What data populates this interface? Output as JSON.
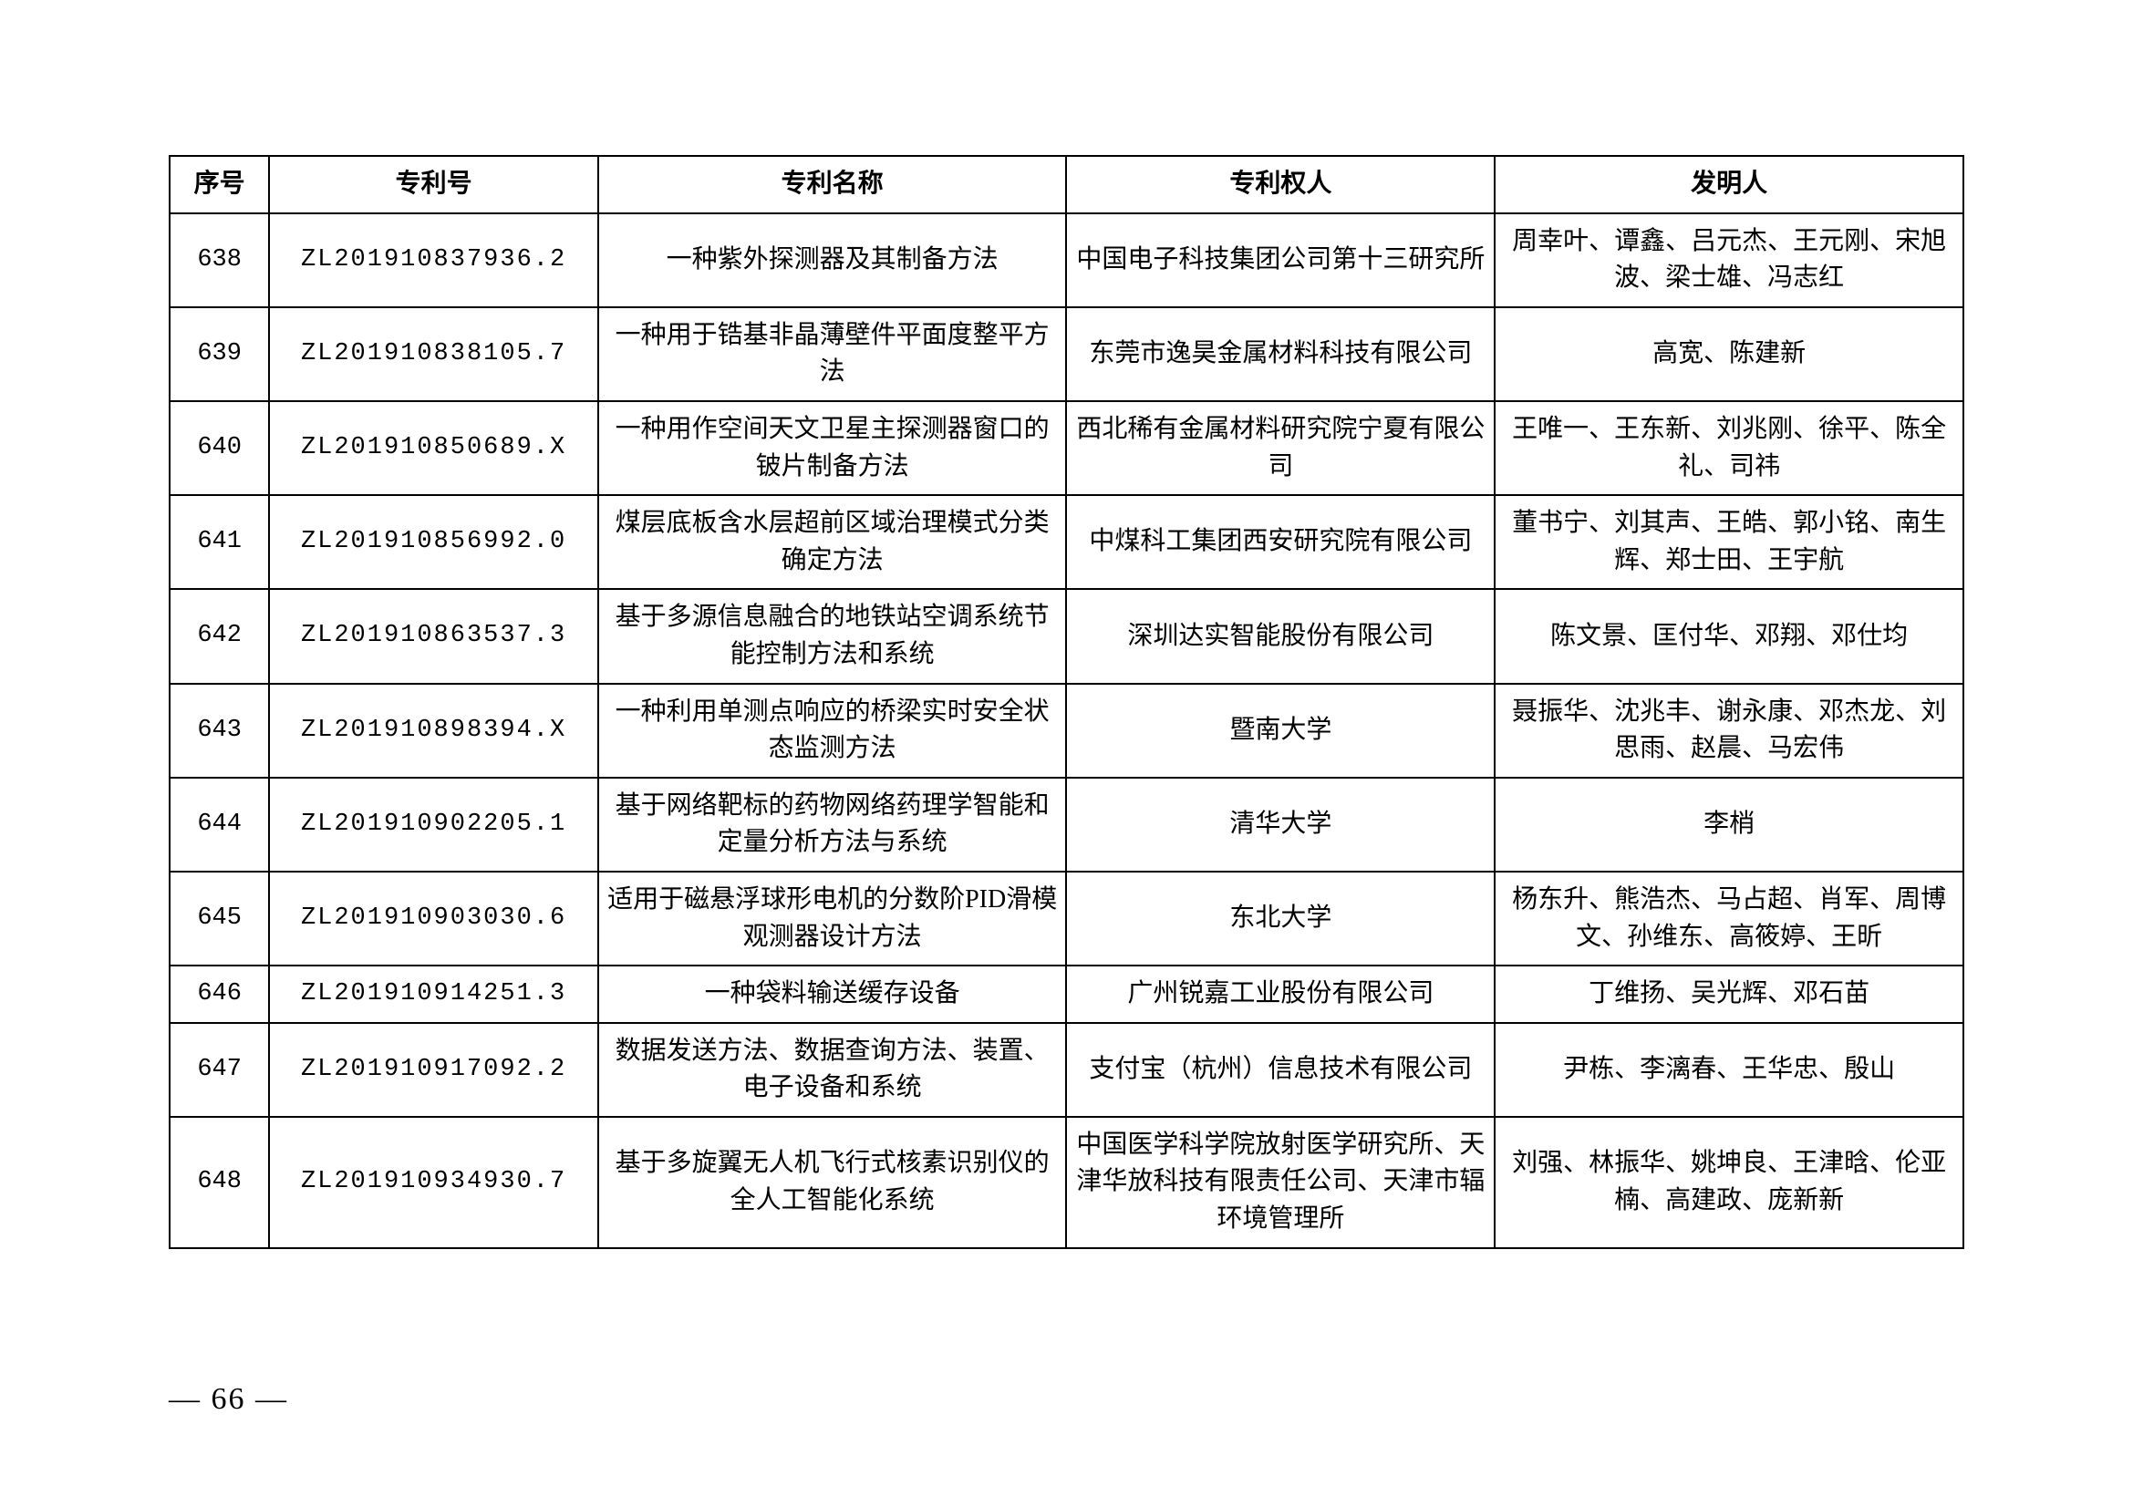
{
  "table": {
    "headers": [
      "序号",
      "专利号",
      "专利名称",
      "专利权人",
      "发明人"
    ],
    "rows": [
      {
        "idx": "638",
        "num": "ZL201910837936.2",
        "name": "一种紫外探测器及其制备方法",
        "owner": "中国电子科技集团公司第十三研究所",
        "inv": "周幸叶、谭鑫、吕元杰、王元刚、宋旭波、梁士雄、冯志红"
      },
      {
        "idx": "639",
        "num": "ZL201910838105.7",
        "name": "一种用于锆基非晶薄壁件平面度整平方法",
        "owner": "东莞市逸昊金属材料科技有限公司",
        "inv": "高宽、陈建新"
      },
      {
        "idx": "640",
        "num": "ZL201910850689.X",
        "name": "一种用作空间天文卫星主探测器窗口的铍片制备方法",
        "owner": "西北稀有金属材料研究院宁夏有限公司",
        "inv": "王唯一、王东新、刘兆刚、徐平、陈全礼、司祎"
      },
      {
        "idx": "641",
        "num": "ZL201910856992.0",
        "name": "煤层底板含水层超前区域治理模式分类确定方法",
        "owner": "中煤科工集团西安研究院有限公司",
        "inv": "董书宁、刘其声、王皓、郭小铭、南生辉、郑士田、王宇航"
      },
      {
        "idx": "642",
        "num": "ZL201910863537.3",
        "name": "基于多源信息融合的地铁站空调系统节能控制方法和系统",
        "owner": "深圳达实智能股份有限公司",
        "inv": "陈文景、匡付华、邓翔、邓仕均"
      },
      {
        "idx": "643",
        "num": "ZL201910898394.X",
        "name": "一种利用单测点响应的桥梁实时安全状态监测方法",
        "owner": "暨南大学",
        "inv": "聂振华、沈兆丰、谢永康、邓杰龙、刘思雨、赵晨、马宏伟"
      },
      {
        "idx": "644",
        "num": "ZL201910902205.1",
        "name": "基于网络靶标的药物网络药理学智能和定量分析方法与系统",
        "owner": "清华大学",
        "inv": "李梢"
      },
      {
        "idx": "645",
        "num": "ZL201910903030.6",
        "name": "适用于磁悬浮球形电机的分数阶PID滑模观测器设计方法",
        "owner": "东北大学",
        "inv": "杨东升、熊浩杰、马占超、肖军、周博文、孙维东、高筱婷、王昕"
      },
      {
        "idx": "646",
        "num": "ZL201910914251.3",
        "name": "一种袋料输送缓存设备",
        "owner": "广州锐嘉工业股份有限公司",
        "inv": "丁维扬、吴光辉、邓石苗"
      },
      {
        "idx": "647",
        "num": "ZL201910917092.2",
        "name": "数据发送方法、数据查询方法、装置、电子设备和系统",
        "owner": "支付宝（杭州）信息技术有限公司",
        "inv": "尹栋、李漓春、王华忠、殷山"
      },
      {
        "idx": "648",
        "num": "ZL201910934930.7",
        "name": "基于多旋翼无人机飞行式核素识别仪的全人工智能化系统",
        "owner": "中国医学科学院放射医学研究所、天津华放科技有限责任公司、天津市辐环境管理所",
        "inv": "刘强、林振华、姚坤良、王津晗、伦亚楠、高建政、庞新新"
      }
    ]
  },
  "page_number": "— 66 —"
}
